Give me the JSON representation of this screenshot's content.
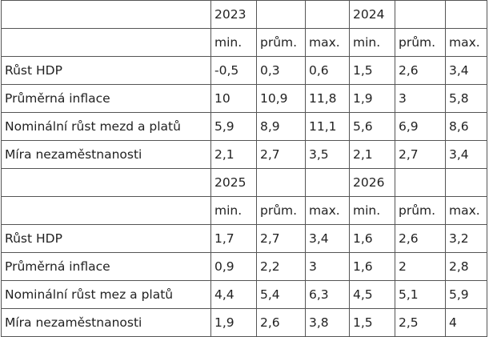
{
  "tables": [
    {
      "years": [
        "2023",
        "2024"
      ],
      "subheaders": [
        "min.",
        "prům.",
        "max.",
        "min.",
        "prům.",
        "max."
      ],
      "rows": [
        {
          "label": "Růst HDP",
          "cells": [
            "-0,5",
            "0,3",
            "0,6",
            "1,5",
            "2,6",
            "3,4"
          ]
        },
        {
          "label": "Průměrná inflace",
          "cells": [
            "10",
            "10,9",
            "11,8",
            "1,9",
            "3",
            "5,8"
          ]
        },
        {
          "label": "Nominální růst mezd a platů",
          "cells": [
            "5,9",
            "8,9",
            "11,1",
            "5,6",
            "6,9",
            "8,6"
          ]
        },
        {
          "label": "Míra nezaměstnanosti",
          "cells": [
            "2,1",
            "2,7",
            "3,5",
            "2,1",
            "2,7",
            "3,4"
          ]
        }
      ]
    },
    {
      "years": [
        "2025",
        "2026"
      ],
      "subheaders": [
        "min.",
        "prům.",
        "max.",
        "min.",
        "prům.",
        "max."
      ],
      "rows": [
        {
          "label": "Růst HDP",
          "cells": [
            "1,7",
            "2,7",
            "3,4",
            "1,6",
            "2,6",
            "3,2"
          ]
        },
        {
          "label": "Průměrná inflace",
          "cells": [
            "0,9",
            "2,2",
            "3",
            "1,6",
            "2",
            "2,8"
          ]
        },
        {
          "label": "Nominální růst mez a platů",
          "cells": [
            "4,4",
            "5,4",
            "6,3",
            "4,5",
            "5,1",
            "5,9"
          ]
        },
        {
          "label": "Míra nezaměstnanosti",
          "cells": [
            "1,9",
            "2,6",
            "3,8",
            "1,5",
            "2,5",
            "4"
          ]
        }
      ]
    }
  ]
}
